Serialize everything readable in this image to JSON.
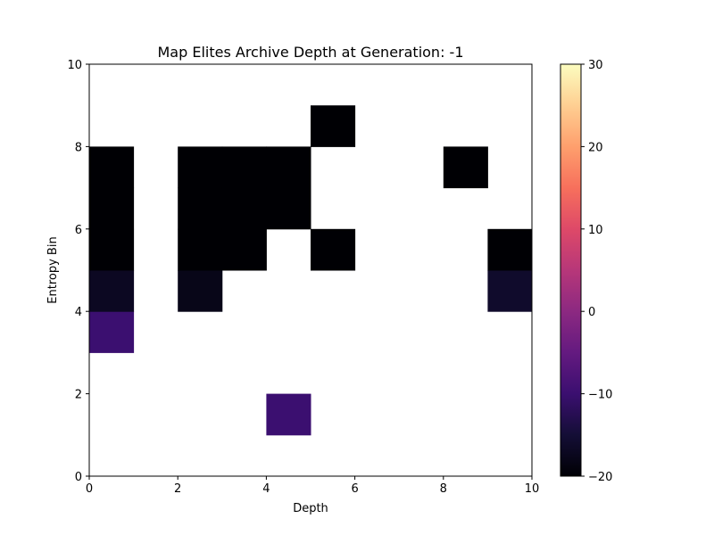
{
  "chart_data": {
    "type": "heatmap",
    "title": "Map Elites Archive Depth at Generation: -1",
    "xlabel": "Depth",
    "ylabel": "Entropy Bin",
    "xlim": [
      0,
      10
    ],
    "ylim": [
      0,
      10
    ],
    "x_ticks": [
      0,
      2,
      4,
      6,
      8,
      10
    ],
    "y_ticks": [
      0,
      2,
      4,
      6,
      8,
      10
    ],
    "colormap": "magma",
    "colorbar": {
      "min": -20,
      "max": 30,
      "ticks": [
        -20,
        -10,
        0,
        10,
        20,
        30
      ]
    },
    "grid": false,
    "cells": [
      {
        "x": 0,
        "y": 3,
        "value": -10
      },
      {
        "x": 0,
        "y": 4,
        "value": -17
      },
      {
        "x": 0,
        "y": 5,
        "value": -20
      },
      {
        "x": 0,
        "y": 6,
        "value": -20
      },
      {
        "x": 0,
        "y": 7,
        "value": -20
      },
      {
        "x": 2,
        "y": 4,
        "value": -18
      },
      {
        "x": 2,
        "y": 5,
        "value": -20
      },
      {
        "x": 2,
        "y": 6,
        "value": -20
      },
      {
        "x": 2,
        "y": 7,
        "value": -20
      },
      {
        "x": 3,
        "y": 5,
        "value": -20
      },
      {
        "x": 3,
        "y": 6,
        "value": -20
      },
      {
        "x": 3,
        "y": 7,
        "value": -20
      },
      {
        "x": 4,
        "y": 1,
        "value": -10
      },
      {
        "x": 4,
        "y": 6,
        "value": -20
      },
      {
        "x": 4,
        "y": 7,
        "value": -20
      },
      {
        "x": 5,
        "y": 5,
        "value": -20
      },
      {
        "x": 5,
        "y": 8,
        "value": -20
      },
      {
        "x": 8,
        "y": 7,
        "value": -20
      },
      {
        "x": 9,
        "y": 4,
        "value": -16
      },
      {
        "x": 9,
        "y": 5,
        "value": -20
      }
    ]
  }
}
